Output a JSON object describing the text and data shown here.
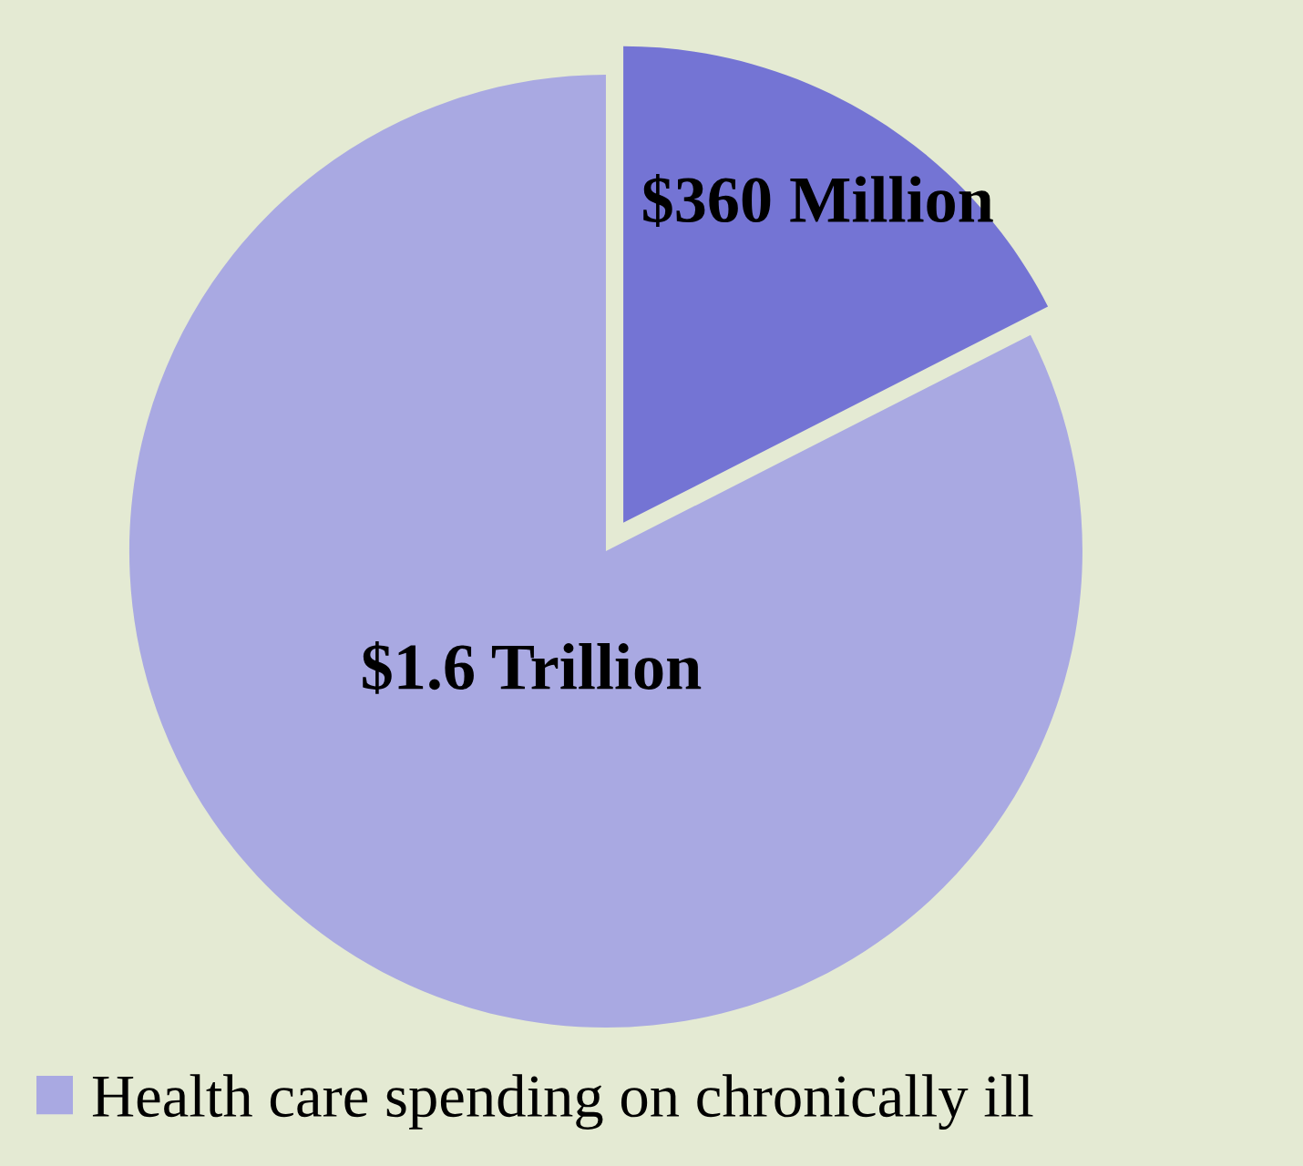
{
  "chart_data": {
    "type": "pie",
    "categories": [
      null,
      "Health care spending on chronically ill"
    ],
    "values": [
      17.5,
      82.5
    ],
    "colors": [
      "#7474d4",
      "#a9a9e2"
    ],
    "annotations": [
      "$360 Million",
      "$1.6 Trillion"
    ],
    "legend": "bottom left"
  }
}
